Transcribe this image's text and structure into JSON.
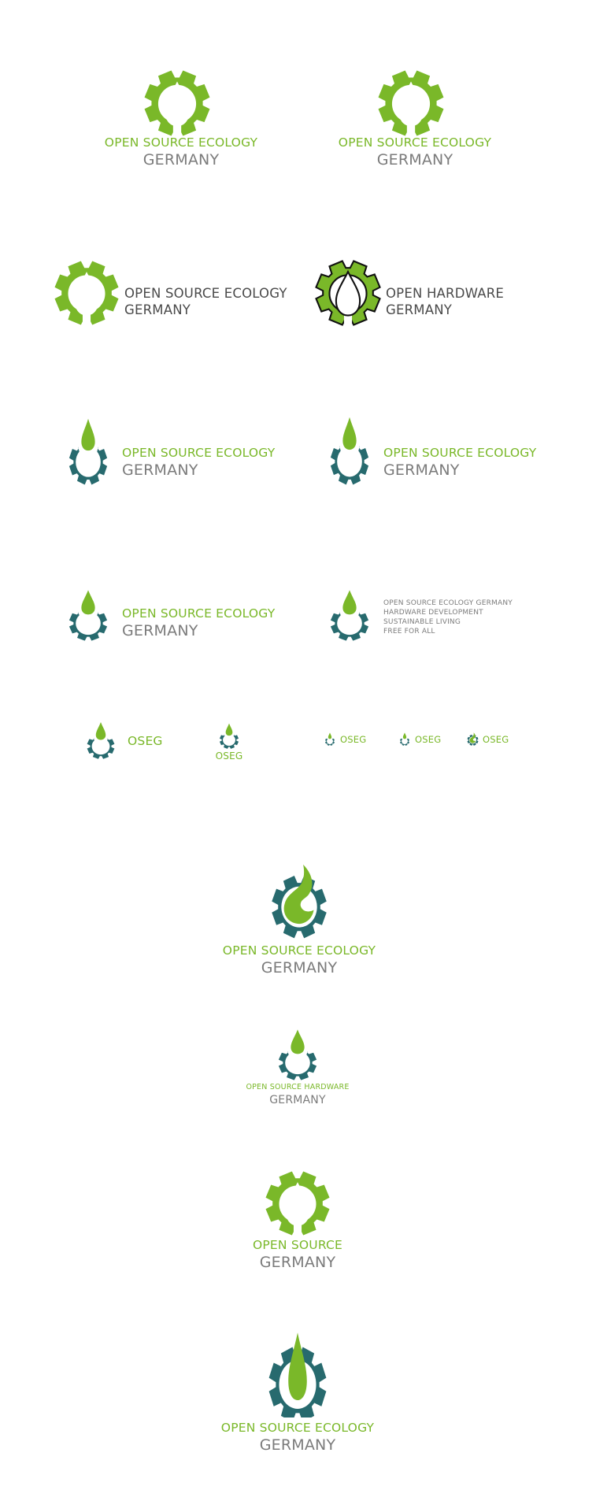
{
  "colors": {
    "green": "#7ab829",
    "teal": "#276a6e",
    "gray": "#7b7b7b",
    "dark": "#4a4a4a"
  },
  "icons": {
    "gear_drop_cutout": "gear-with-drop-cutout-icon",
    "gear_drop_outline": "gear-with-drop-cutout-outlined-icon",
    "gear_drop_above": "gear-with-drop-above-icon",
    "gear_leaf": "gear-with-leaf-icon",
    "gear_tall_drop": "gear-with-tall-drop-icon"
  },
  "logos": {
    "r1_left": {
      "line1": "OPEN SOURCE ECOLOGY",
      "line2": "GERMANY"
    },
    "r1_right": {
      "line1": "OPEN SOURCE ECOLOGY",
      "line2": "GERMANY"
    },
    "r2_left": {
      "line1": "OPEN SOURCE ECOLOGY",
      "line2": "GERMANY"
    },
    "r2_right": {
      "line1": "OPEN HARDWARE",
      "line2": "GERMANY"
    },
    "r3_left": {
      "line1": "OPEN SOURCE ECOLOGY",
      "line2": "GERMANY"
    },
    "r3_right": {
      "line1": "OPEN SOURCE ECOLOGY",
      "line2": "GERMANY"
    },
    "r4_left": {
      "line1": "OPEN SOURCE ECOLOGY",
      "line2": "GERMANY"
    },
    "r4_right": {
      "lines": [
        "OPEN SOURCE ECOLOGY GERMANY",
        "HARDWARE DEVELOPMENT",
        "SUSTAINABLE LIVING",
        "FREE FOR ALL"
      ]
    },
    "r5_a": {
      "label": "OSEG"
    },
    "r5_b": {
      "label": "OSEG"
    },
    "r5_c": {
      "label": "OSEG"
    },
    "r5_d": {
      "label": "OSEG"
    },
    "r5_e": {
      "label": "OSEG"
    },
    "c1": {
      "line1": "OPEN SOURCE ECOLOGY",
      "line2": "GERMANY"
    },
    "c2": {
      "line1": "OPEN SOURCE HARDWARE",
      "line2": "GERMANY"
    },
    "c3": {
      "line1": "OPEN SOURCE",
      "line2": "GERMANY"
    },
    "c4": {
      "line1": "OPEN SOURCE ECOLOGY",
      "line2": "GERMANY"
    }
  }
}
